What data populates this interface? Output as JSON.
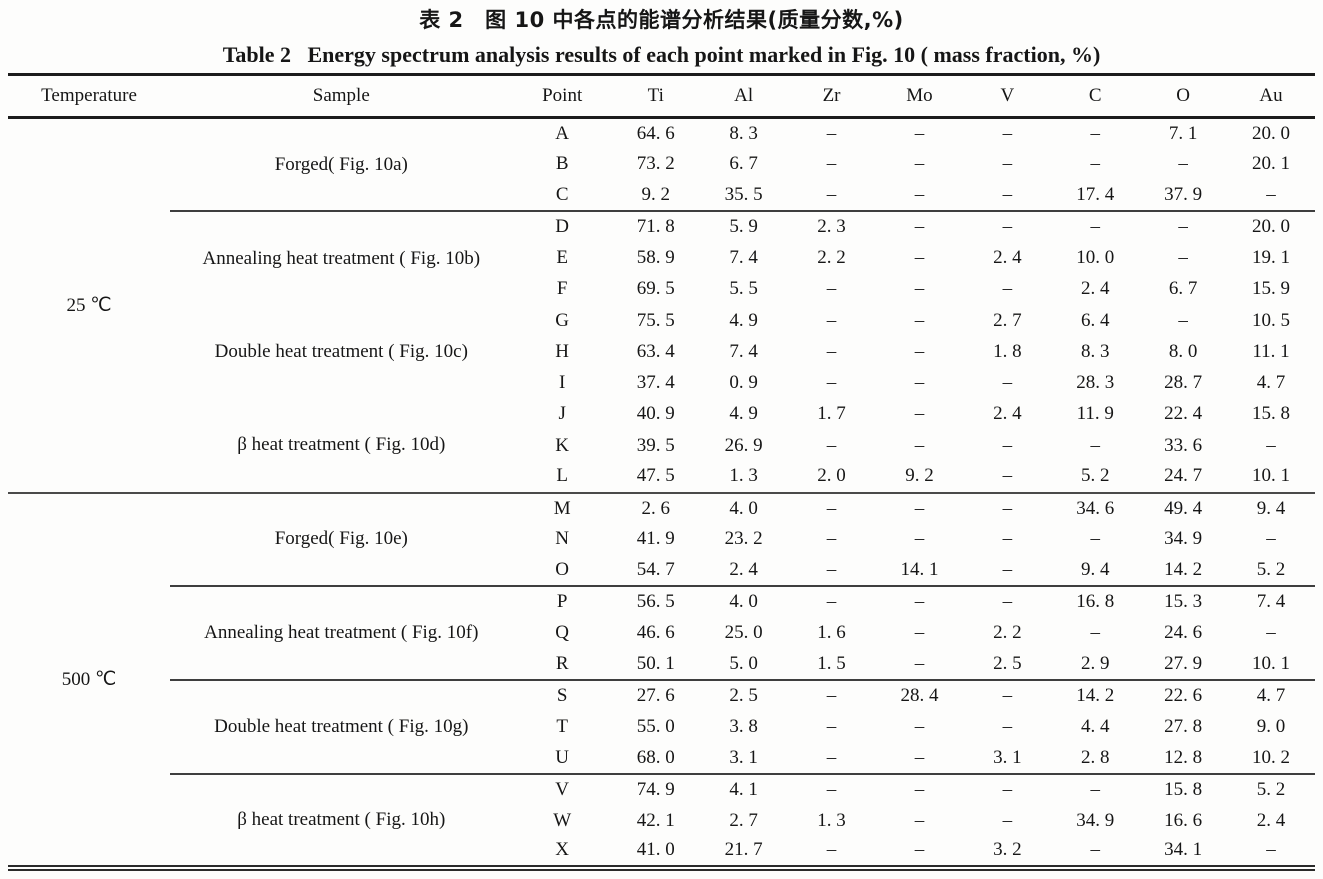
{
  "titles": {
    "chinese": "表 2　图 10 中各点的能谱分析结果(质量分数,%)",
    "english": "Table 2   Energy spectrum analysis results of each point marked in Fig. 10 ( mass fraction, %)"
  },
  "table": {
    "columns": [
      "Temperature",
      "Sample",
      "Point",
      "Ti",
      "Al",
      "Zr",
      "Mo",
      "V",
      "C",
      "O",
      "Au"
    ],
    "empty_marker": "–",
    "temperature_blocks": [
      {
        "temperature": "25 ℃",
        "groups": [
          {
            "sample": "Forged( Fig. 10a)",
            "divider_below": true,
            "rows": [
              {
                "point": "A",
                "values": [
                  "64. 6",
                  "8. 3",
                  "–",
                  "–",
                  "–",
                  "–",
                  "7. 1",
                  "20. 0"
                ]
              },
              {
                "point": "B",
                "values": [
                  "73. 2",
                  "6. 7",
                  "–",
                  "–",
                  "–",
                  "–",
                  "–",
                  "20. 1"
                ]
              },
              {
                "point": "C",
                "values": [
                  "9. 2",
                  "35. 5",
                  "–",
                  "–",
                  "–",
                  "17. 4",
                  "37. 9",
                  "–"
                ]
              }
            ]
          },
          {
            "sample": "Annealing heat treatment ( Fig. 10b)",
            "divider_below": false,
            "rows": [
              {
                "point": "D",
                "values": [
                  "71. 8",
                  "5. 9",
                  "2. 3",
                  "–",
                  "–",
                  "–",
                  "–",
                  "20. 0"
                ]
              },
              {
                "point": "E",
                "values": [
                  "58. 9",
                  "7. 4",
                  "2. 2",
                  "–",
                  "2. 4",
                  "10. 0",
                  "–",
                  "19. 1"
                ]
              },
              {
                "point": "F",
                "values": [
                  "69. 5",
                  "5. 5",
                  "–",
                  "–",
                  "–",
                  "2. 4",
                  "6. 7",
                  "15. 9"
                ]
              }
            ]
          },
          {
            "sample": "Double heat treatment ( Fig. 10c)",
            "divider_below": false,
            "rows": [
              {
                "point": "G",
                "values": [
                  "75. 5",
                  "4. 9",
                  "–",
                  "–",
                  "2. 7",
                  "6. 4",
                  "–",
                  "10. 5"
                ]
              },
              {
                "point": "H",
                "values": [
                  "63. 4",
                  "7. 4",
                  "–",
                  "–",
                  "1. 8",
                  "8. 3",
                  "8. 0",
                  "11. 1"
                ]
              },
              {
                "point": "I",
                "values": [
                  "37. 4",
                  "0. 9",
                  "–",
                  "–",
                  "–",
                  "28. 3",
                  "28. 7",
                  "4. 7"
                ]
              }
            ]
          },
          {
            "sample": "β heat treatment ( Fig. 10d)",
            "divider_below": false,
            "rows": [
              {
                "point": "J",
                "values": [
                  "40. 9",
                  "4. 9",
                  "1. 7",
                  "–",
                  "2. 4",
                  "11. 9",
                  "22. 4",
                  "15. 8"
                ]
              },
              {
                "point": "K",
                "values": [
                  "39. 5",
                  "26. 9",
                  "–",
                  "–",
                  "–",
                  "–",
                  "33. 6",
                  "–"
                ]
              },
              {
                "point": "L",
                "values": [
                  "47. 5",
                  "1. 3",
                  "2. 0",
                  "9. 2",
                  "–",
                  "5. 2",
                  "24. 7",
                  "10. 1"
                ]
              }
            ]
          }
        ]
      },
      {
        "temperature": "500 ℃",
        "groups": [
          {
            "sample": "Forged( Fig. 10e)",
            "divider_below": true,
            "rows": [
              {
                "point": "M",
                "values": [
                  "2. 6",
                  "4. 0",
                  "–",
                  "–",
                  "–",
                  "34. 6",
                  "49. 4",
                  "9. 4"
                ]
              },
              {
                "point": "N",
                "values": [
                  "41. 9",
                  "23. 2",
                  "–",
                  "–",
                  "–",
                  "–",
                  "34. 9",
                  "–"
                ]
              },
              {
                "point": "O",
                "values": [
                  "54. 7",
                  "2. 4",
                  "–",
                  "14. 1",
                  "–",
                  "9. 4",
                  "14. 2",
                  "5. 2"
                ]
              }
            ]
          },
          {
            "sample": "Annealing heat treatment ( Fig. 10f)",
            "divider_below": true,
            "rows": [
              {
                "point": "P",
                "values": [
                  "56. 5",
                  "4. 0",
                  "–",
                  "–",
                  "–",
                  "16. 8",
                  "15. 3",
                  "7. 4"
                ]
              },
              {
                "point": "Q",
                "values": [
                  "46. 6",
                  "25. 0",
                  "1. 6",
                  "–",
                  "2. 2",
                  "–",
                  "24. 6",
                  "–"
                ]
              },
              {
                "point": "R",
                "values": [
                  "50. 1",
                  "5. 0",
                  "1. 5",
                  "–",
                  "2. 5",
                  "2. 9",
                  "27. 9",
                  "10. 1"
                ]
              }
            ]
          },
          {
            "sample": "Double heat treatment ( Fig. 10g)",
            "divider_below": true,
            "rows": [
              {
                "point": "S",
                "values": [
                  "27. 6",
                  "2. 5",
                  "–",
                  "28. 4",
                  "–",
                  "14. 2",
                  "22. 6",
                  "4. 7"
                ]
              },
              {
                "point": "T",
                "values": [
                  "55. 0",
                  "3. 8",
                  "–",
                  "–",
                  "–",
                  "4. 4",
                  "27. 8",
                  "9. 0"
                ]
              },
              {
                "point": "U",
                "values": [
                  "68. 0",
                  "3. 1",
                  "–",
                  "–",
                  "3. 1",
                  "2. 8",
                  "12. 8",
                  "10. 2"
                ]
              }
            ]
          },
          {
            "sample": "β heat treatment ( Fig. 10h)",
            "divider_below": false,
            "rows": [
              {
                "point": "V",
                "values": [
                  "74. 9",
                  "4. 1",
                  "–",
                  "–",
                  "–",
                  "–",
                  "15. 8",
                  "5. 2"
                ]
              },
              {
                "point": "W",
                "values": [
                  "42. 1",
                  "2. 7",
                  "1. 3",
                  "–",
                  "–",
                  "34. 9",
                  "16. 6",
                  "2. 4"
                ]
              },
              {
                "point": "X",
                "values": [
                  "41. 0",
                  "21. 7",
                  "–",
                  "–",
                  "3. 2",
                  "–",
                  "34. 1",
                  "–"
                ]
              }
            ]
          }
        ]
      }
    ]
  }
}
